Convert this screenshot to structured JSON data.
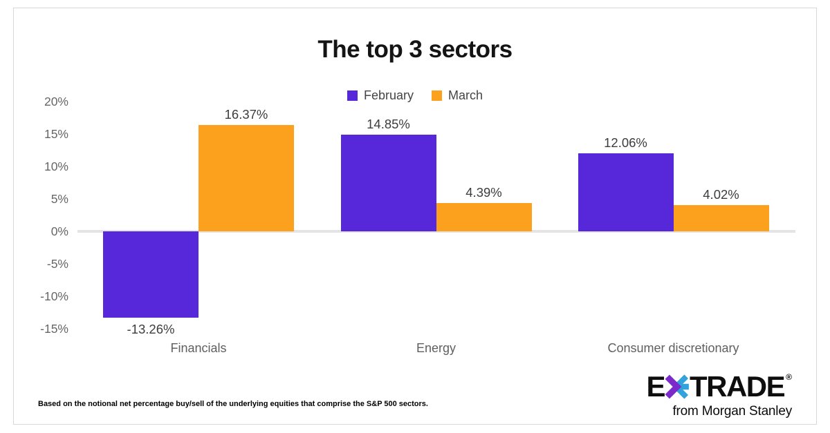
{
  "title": "The top 3 sectors",
  "legend": {
    "items": [
      {
        "label": "February",
        "color": "#5728D9"
      },
      {
        "label": "March",
        "color": "#FCA11E"
      }
    ]
  },
  "chart_data": {
    "type": "bar",
    "title": "The top 3 sectors",
    "categories": [
      "Financials",
      "Energy",
      "Consumer discretionary"
    ],
    "series": [
      {
        "name": "February",
        "color": "#5728D9",
        "values": [
          -13.26,
          14.85,
          12.06
        ]
      },
      {
        "name": "March",
        "color": "#FCA11E",
        "values": [
          16.37,
          4.39,
          4.02
        ]
      }
    ],
    "value_labels": [
      [
        "-13.26%",
        "16.37%"
      ],
      [
        "14.85%",
        "4.39%"
      ],
      [
        "12.06%",
        "4.02%"
      ]
    ],
    "ylim": [
      -15,
      20
    ],
    "yticks": [
      "20%",
      "15%",
      "10%",
      "5%",
      "0%",
      "-5%",
      "-10%",
      "-15%"
    ],
    "ytick_values": [
      20,
      15,
      10,
      5,
      0,
      -5,
      -10,
      -15
    ],
    "grid": false,
    "legend_position": "top-center",
    "xlabel": "",
    "ylabel": ""
  },
  "footnote": "Based on the notional net percentage buy/sell of the underlying equities that comprise the S&P 500 sectors.",
  "logo": {
    "e": "E",
    "trade": "TRADE",
    "registered": "®",
    "tagline": "from Morgan Stanley",
    "star_purple": "#7B2BCB",
    "star_blue": "#31A2DA"
  }
}
